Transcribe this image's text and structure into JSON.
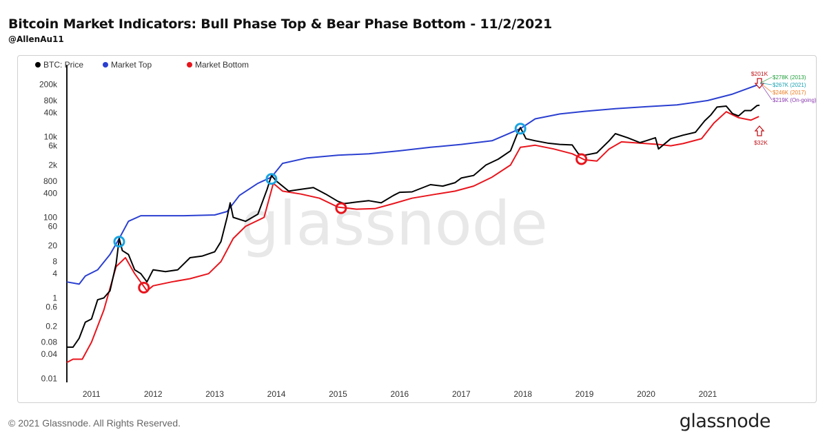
{
  "title": "Bitcoin Market Indicators: Bull Phase Top & Bear Phase Bottom - 11/2/2021",
  "subtitle": "@AllenAu11",
  "footer": "© 2021 Glassnode. All Rights Reserved.",
  "brand": "glassnode",
  "watermark": "glassnode",
  "colors": {
    "price": "#000000",
    "top": "#2a3fd0",
    "bottom": "#e8141c",
    "top_marker": "#1aa3e0",
    "bottom_marker": "#e8141c"
  },
  "chart_data": {
    "type": "line",
    "yscale": "log",
    "ylim": [
      0.008,
      400000
    ],
    "xlim": [
      2010.6,
      2021.85
    ],
    "ytick_values": [
      0.01,
      0.04,
      0.08,
      0.2,
      0.6,
      1,
      4,
      8,
      20,
      60,
      100,
      400,
      800,
      2000,
      6000,
      10000,
      40000,
      80000,
      200000
    ],
    "ytick_labels": [
      "0.01",
      "0.04",
      "0.08",
      "0.2",
      "0.6",
      "1",
      "4",
      "8",
      "20",
      "60",
      "100",
      "400",
      "800",
      "2k",
      "6k",
      "10k",
      "40k",
      "80k",
      "200k"
    ],
    "xtick_values": [
      2011,
      2012,
      2013,
      2014,
      2015,
      2016,
      2017,
      2018,
      2019,
      2020,
      2021
    ],
    "xtick_labels": [
      "2011",
      "2012",
      "2013",
      "2014",
      "2015",
      "2016",
      "2017",
      "2018",
      "2019",
      "2020",
      "2021"
    ],
    "legend": [
      {
        "name": "BTC: Price",
        "color": "#000000"
      },
      {
        "name": "Market Top",
        "color": "#2a3fd0"
      },
      {
        "name": "Market Bottom",
        "color": "#e8141c"
      }
    ],
    "series": [
      {
        "name": "BTC: Price",
        "color": "#000000",
        "points": [
          [
            2010.6,
            0.06
          ],
          [
            2010.7,
            0.06
          ],
          [
            2010.8,
            0.1
          ],
          [
            2010.9,
            0.25
          ],
          [
            2011.0,
            0.3
          ],
          [
            2011.1,
            0.9
          ],
          [
            2011.2,
            1
          ],
          [
            2011.3,
            1.5
          ],
          [
            2011.4,
            7
          ],
          [
            2011.45,
            30
          ],
          [
            2011.5,
            15
          ],
          [
            2011.6,
            12
          ],
          [
            2011.7,
            5
          ],
          [
            2011.8,
            4
          ],
          [
            2011.9,
            2.5
          ],
          [
            2012.0,
            5
          ],
          [
            2012.2,
            4.5
          ],
          [
            2012.4,
            5
          ],
          [
            2012.6,
            10
          ],
          [
            2012.8,
            11
          ],
          [
            2013.0,
            14
          ],
          [
            2013.1,
            25
          ],
          [
            2013.2,
            100
          ],
          [
            2013.25,
            230
          ],
          [
            2013.3,
            100
          ],
          [
            2013.5,
            80
          ],
          [
            2013.7,
            120
          ],
          [
            2013.85,
            500
          ],
          [
            2013.92,
            1100
          ],
          [
            2014.0,
            800
          ],
          [
            2014.2,
            450
          ],
          [
            2014.4,
            500
          ],
          [
            2014.6,
            550
          ],
          [
            2014.8,
            380
          ],
          [
            2015.0,
            250
          ],
          [
            2015.1,
            220
          ],
          [
            2015.3,
            240
          ],
          [
            2015.5,
            260
          ],
          [
            2015.7,
            230
          ],
          [
            2015.9,
            350
          ],
          [
            2016.0,
            420
          ],
          [
            2016.2,
            430
          ],
          [
            2016.5,
            650
          ],
          [
            2016.7,
            600
          ],
          [
            2016.9,
            730
          ],
          [
            2017.0,
            950
          ],
          [
            2017.2,
            1100
          ],
          [
            2017.4,
            2000
          ],
          [
            2017.6,
            2800
          ],
          [
            2017.8,
            4500
          ],
          [
            2017.9,
            11000
          ],
          [
            2017.96,
            17000
          ],
          [
            2018.05,
            9000
          ],
          [
            2018.2,
            8000
          ],
          [
            2018.4,
            7000
          ],
          [
            2018.6,
            6500
          ],
          [
            2018.8,
            6300
          ],
          [
            2018.9,
            3800
          ],
          [
            2019.0,
            3500
          ],
          [
            2019.2,
            4000
          ],
          [
            2019.4,
            8000
          ],
          [
            2019.5,
            12000
          ],
          [
            2019.7,
            9500
          ],
          [
            2019.9,
            7200
          ],
          [
            2020.0,
            8000
          ],
          [
            2020.15,
            9500
          ],
          [
            2020.2,
            5000
          ],
          [
            2020.4,
            9000
          ],
          [
            2020.6,
            11000
          ],
          [
            2020.8,
            13000
          ],
          [
            2020.95,
            25000
          ],
          [
            2021.05,
            35000
          ],
          [
            2021.15,
            55000
          ],
          [
            2021.3,
            58000
          ],
          [
            2021.4,
            38000
          ],
          [
            2021.5,
            33000
          ],
          [
            2021.6,
            45000
          ],
          [
            2021.7,
            45000
          ],
          [
            2021.8,
            60000
          ],
          [
            2021.84,
            61000
          ]
        ]
      },
      {
        "name": "Market Top",
        "color": "#2a3fd0",
        "points": [
          [
            2010.6,
            2.5
          ],
          [
            2010.8,
            2.2
          ],
          [
            2010.9,
            3.5
          ],
          [
            2011.1,
            5
          ],
          [
            2011.3,
            12
          ],
          [
            2011.45,
            30
          ],
          [
            2011.6,
            80
          ],
          [
            2011.8,
            110
          ],
          [
            2012.0,
            110
          ],
          [
            2012.5,
            110
          ],
          [
            2013.0,
            115
          ],
          [
            2013.2,
            140
          ],
          [
            2013.4,
            350
          ],
          [
            2013.7,
            700
          ],
          [
            2013.92,
            1000
          ],
          [
            2014.1,
            2200
          ],
          [
            2014.5,
            3000
          ],
          [
            2015.0,
            3500
          ],
          [
            2015.5,
            3800
          ],
          [
            2016.0,
            4500
          ],
          [
            2016.5,
            5500
          ],
          [
            2017.0,
            6500
          ],
          [
            2017.5,
            8000
          ],
          [
            2017.96,
            16000
          ],
          [
            2018.2,
            28000
          ],
          [
            2018.6,
            37000
          ],
          [
            2019.0,
            43000
          ],
          [
            2019.5,
            50000
          ],
          [
            2020.0,
            56000
          ],
          [
            2020.5,
            62000
          ],
          [
            2021.0,
            80000
          ],
          [
            2021.4,
            115000
          ],
          [
            2021.83,
            201000
          ]
        ]
      },
      {
        "name": "Market Bottom",
        "color": "#e8141c",
        "points": [
          [
            2010.6,
            0.025
          ],
          [
            2010.7,
            0.03
          ],
          [
            2010.85,
            0.03
          ],
          [
            2011.0,
            0.08
          ],
          [
            2011.2,
            0.5
          ],
          [
            2011.4,
            6
          ],
          [
            2011.55,
            10
          ],
          [
            2011.7,
            4
          ],
          [
            2011.9,
            1.5
          ],
          [
            2012.0,
            2
          ],
          [
            2012.3,
            2.5
          ],
          [
            2012.6,
            3
          ],
          [
            2012.9,
            4
          ],
          [
            2013.1,
            8
          ],
          [
            2013.3,
            30
          ],
          [
            2013.5,
            60
          ],
          [
            2013.8,
            100
          ],
          [
            2013.95,
            700
          ],
          [
            2014.1,
            450
          ],
          [
            2014.4,
            380
          ],
          [
            2014.7,
            300
          ],
          [
            2015.0,
            180
          ],
          [
            2015.3,
            160
          ],
          [
            2015.6,
            165
          ],
          [
            2015.9,
            220
          ],
          [
            2016.2,
            300
          ],
          [
            2016.6,
            380
          ],
          [
            2016.9,
            450
          ],
          [
            2017.2,
            600
          ],
          [
            2017.5,
            1000
          ],
          [
            2017.8,
            2000
          ],
          [
            2017.96,
            5500
          ],
          [
            2018.2,
            6200
          ],
          [
            2018.5,
            5000
          ],
          [
            2018.8,
            3800
          ],
          [
            2019.0,
            2700
          ],
          [
            2019.2,
            2500
          ],
          [
            2019.4,
            5000
          ],
          [
            2019.6,
            7500
          ],
          [
            2019.9,
            7000
          ],
          [
            2020.2,
            6500
          ],
          [
            2020.4,
            6000
          ],
          [
            2020.6,
            6800
          ],
          [
            2020.9,
            9000
          ],
          [
            2021.1,
            22000
          ],
          [
            2021.3,
            42000
          ],
          [
            2021.5,
            30000
          ],
          [
            2021.7,
            26000
          ],
          [
            2021.83,
            32000
          ]
        ]
      }
    ],
    "markers": [
      {
        "type": "top",
        "x": 2011.45,
        "y": 25
      },
      {
        "type": "top",
        "x": 2013.92,
        "y": 900
      },
      {
        "type": "top",
        "x": 2017.96,
        "y": 16000
      },
      {
        "type": "bottom",
        "x": 2011.85,
        "y": 1.8
      },
      {
        "type": "bottom",
        "x": 2015.05,
        "y": 170
      },
      {
        "type": "bottom",
        "x": 2018.95,
        "y": 2800
      }
    ],
    "annotations": {
      "top_projection": "$201K",
      "bottom_projection": "$32K",
      "projections": [
        {
          "label": "$278K (2013)",
          "color": "#1f9e3a"
        },
        {
          "label": "$267K (2021)",
          "color": "#18a0b0"
        },
        {
          "label": "$246K (2017)",
          "color": "#ee7a1c"
        },
        {
          "label": "$219K (On-going)",
          "color": "#8a3ab0"
        }
      ]
    }
  }
}
